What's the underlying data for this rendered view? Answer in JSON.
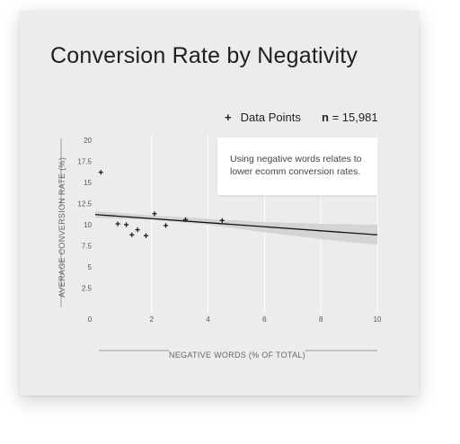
{
  "chart_data": {
    "type": "scatter",
    "title": "Conversion Rate by Negativity",
    "xlabel": "NEGATIVE WORDS (% OF TOTAL)",
    "ylabel": "AVERAGE CONVERSION RATE (%)",
    "xlim": [
      0,
      10
    ],
    "ylim": [
      0,
      20
    ],
    "x_ticks": [
      "0",
      "2",
      "4",
      "6",
      "8",
      "10"
    ],
    "y_ticks": [
      "2.5",
      "5",
      "7.5",
      "10",
      "12.5",
      "15",
      "17.5",
      "20"
    ],
    "legend": {
      "marker": "+",
      "label": "Data Points",
      "placement": "top-right"
    },
    "sample_size": {
      "label": "n",
      "value": "= 15,981"
    },
    "annotation": "Using negative words relates to lower ecomm conversion rates.",
    "series": [
      {
        "name": "Data Points",
        "points": [
          {
            "x": 0.2,
            "y": 16.2
          },
          {
            "x": 0.8,
            "y": 10.1
          },
          {
            "x": 1.1,
            "y": 10.0
          },
          {
            "x": 1.3,
            "y": 8.8
          },
          {
            "x": 1.5,
            "y": 9.4
          },
          {
            "x": 1.8,
            "y": 8.7
          },
          {
            "x": 2.1,
            "y": 11.3
          },
          {
            "x": 2.5,
            "y": 9.9
          },
          {
            "x": 3.2,
            "y": 10.6
          },
          {
            "x": 4.5,
            "y": 10.5
          }
        ]
      }
    ],
    "trend_line": {
      "x": [
        0,
        10
      ],
      "y": [
        11.2,
        8.8
      ]
    },
    "confidence_band": {
      "x": [
        0,
        2,
        4,
        6,
        8,
        10
      ],
      "upper": [
        11.6,
        11.1,
        10.7,
        10.3,
        10.1,
        10.0
      ],
      "lower": [
        10.8,
        10.6,
        10.0,
        9.1,
        8.3,
        7.6
      ]
    },
    "grid": {
      "vertical": true,
      "horizontal": false
    }
  }
}
